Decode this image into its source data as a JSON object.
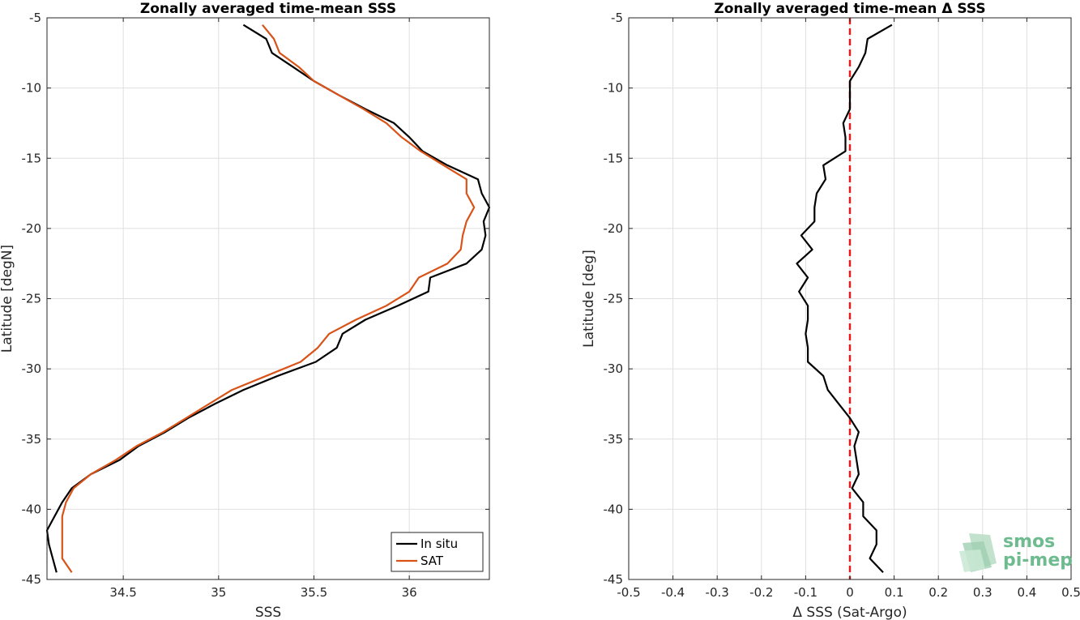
{
  "chart_data": [
    {
      "type": "line",
      "title": "Zonally averaged time-mean SSS",
      "xlabel": "SSS",
      "ylabel": "Latitude [degN]",
      "xlim": [
        34.1,
        36.42
      ],
      "ylim": [
        -45,
        -5
      ],
      "xticks": [
        34.5,
        35,
        35.5,
        36
      ],
      "xtick_labels": [
        "34.5",
        "35",
        "35.5",
        "36"
      ],
      "yticks": [
        -5,
        -10,
        -15,
        -20,
        -25,
        -30,
        -35,
        -40,
        -45
      ],
      "ytick_labels": [
        "-5",
        "-10",
        "-15",
        "-20",
        "-25",
        "-30",
        "-35",
        "-40",
        "-45"
      ],
      "grid": true,
      "legend_position": "bottom-right",
      "y": [
        -5.5,
        -6.5,
        -7.5,
        -8.5,
        -9.5,
        -10.5,
        -11.5,
        -12.5,
        -13.5,
        -14.5,
        -15.5,
        -16.5,
        -17.5,
        -18.5,
        -19.5,
        -20.5,
        -21.5,
        -22.5,
        -23.5,
        -24.5,
        -25.5,
        -26.5,
        -27.5,
        -28.5,
        -29.5,
        -30.5,
        -31.5,
        -32.5,
        -33.5,
        -34.5,
        -35.5,
        -36.5,
        -37.5,
        -38.5,
        -39.5,
        -40.5,
        -41.5,
        -42.5,
        -43.5,
        -44.5
      ],
      "series": [
        {
          "name": "In situ",
          "color": "#000000",
          "values": [
            35.13,
            35.25,
            35.28,
            35.39,
            35.5,
            35.63,
            35.77,
            35.92,
            36.0,
            36.07,
            36.2,
            36.36,
            36.38,
            36.42,
            36.39,
            36.4,
            36.38,
            36.3,
            36.11,
            36.1,
            35.94,
            35.77,
            35.65,
            35.62,
            35.51,
            35.31,
            35.13,
            34.98,
            34.84,
            34.72,
            34.58,
            34.48,
            34.33,
            34.23,
            34.18,
            34.14,
            34.1,
            34.11,
            34.13,
            34.15
          ]
        },
        {
          "name": "SAT",
          "color": "#d95319",
          "values": [
            35.23,
            35.29,
            35.32,
            35.42,
            35.5,
            35.63,
            35.76,
            35.88,
            35.96,
            36.06,
            36.18,
            36.3,
            36.3,
            36.34,
            36.3,
            36.28,
            36.27,
            36.2,
            36.05,
            36.0,
            35.88,
            35.72,
            35.58,
            35.52,
            35.43,
            35.25,
            35.07,
            34.95,
            34.83,
            34.71,
            34.57,
            34.46,
            34.33,
            34.24,
            34.2,
            34.18,
            34.18,
            34.18,
            34.18,
            34.23
          ]
        }
      ]
    },
    {
      "type": "line",
      "title": "Zonally averaged time-mean Δ SSS",
      "xlabel": "Δ SSS (Sat-Argo)",
      "ylabel": "Latitude [deg]",
      "xlim": [
        -0.5,
        0.5
      ],
      "ylim": [
        -45,
        -5
      ],
      "xticks": [
        -0.5,
        -0.4,
        -0.3,
        -0.2,
        -0.1,
        0,
        0.1,
        0.2,
        0.3,
        0.4,
        0.5
      ],
      "xtick_labels": [
        "-0.5",
        "-0.4",
        "-0.3",
        "-0.2",
        "-0.1",
        "0",
        "0.1",
        "0.2",
        "0.3",
        "0.4",
        "0.5"
      ],
      "yticks": [
        -5,
        -10,
        -15,
        -20,
        -25,
        -30,
        -35,
        -40,
        -45
      ],
      "ytick_labels": [
        "-5",
        "-10",
        "-15",
        "-20",
        "-25",
        "-30",
        "-35",
        "-40",
        "-45"
      ],
      "grid": true,
      "reference_line": {
        "x": 0,
        "color": "#e41a1c",
        "style": "dashed"
      },
      "y": [
        -5.5,
        -6.5,
        -7.5,
        -8.5,
        -9.5,
        -10.5,
        -11.5,
        -12.5,
        -13.5,
        -14.5,
        -15.5,
        -16.5,
        -17.5,
        -18.5,
        -19.5,
        -20.5,
        -21.5,
        -22.5,
        -23.5,
        -24.5,
        -25.5,
        -26.5,
        -27.5,
        -28.5,
        -29.5,
        -30.5,
        -31.5,
        -32.5,
        -33.5,
        -34.5,
        -35.5,
        -36.5,
        -37.5,
        -38.5,
        -39.5,
        -40.5,
        -41.5,
        -42.5,
        -43.5,
        -44.5
      ],
      "series": [
        {
          "color": "#000000",
          "values": [
            0.095,
            0.04,
            0.035,
            0.02,
            0.0,
            0.0,
            0.0,
            -0.015,
            -0.01,
            -0.01,
            -0.06,
            -0.055,
            -0.075,
            -0.08,
            -0.08,
            -0.11,
            -0.085,
            -0.12,
            -0.095,
            -0.115,
            -0.095,
            -0.095,
            -0.1,
            -0.095,
            -0.095,
            -0.06,
            -0.05,
            -0.025,
            0.0,
            0.02,
            0.01,
            0.015,
            0.02,
            0.005,
            0.03,
            0.03,
            0.06,
            0.06,
            0.045,
            0.075
          ]
        }
      ]
    }
  ],
  "logo": {
    "line1": "smos",
    "line2": "pi-mep",
    "color": "#6dbb8f"
  }
}
